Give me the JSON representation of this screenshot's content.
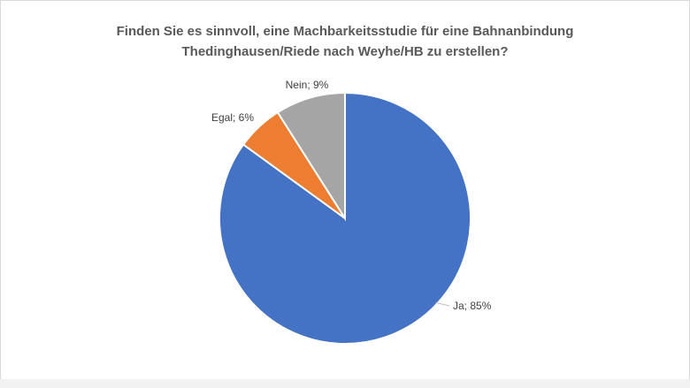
{
  "chart_data": {
    "type": "pie",
    "title_lines": [
      "Finden Sie es sinnvoll, eine Machbarkeitsstudie für eine Bahnanbindung",
      "Thedinghausen/Riede nach Weyhe/HB zu erstellen?"
    ],
    "slices": [
      {
        "label": "Ja",
        "value": 85,
        "display": "Ja; 85%",
        "color": "#4472c4"
      },
      {
        "label": "Egal",
        "value": 6,
        "display": "Egal; 6%",
        "color": "#ed7d31"
      },
      {
        "label": "Nein",
        "value": 9,
        "display": "Nein; 9%",
        "color": "#a5a5a5"
      }
    ],
    "start_angle_deg": 0,
    "direction": "clockwise"
  }
}
